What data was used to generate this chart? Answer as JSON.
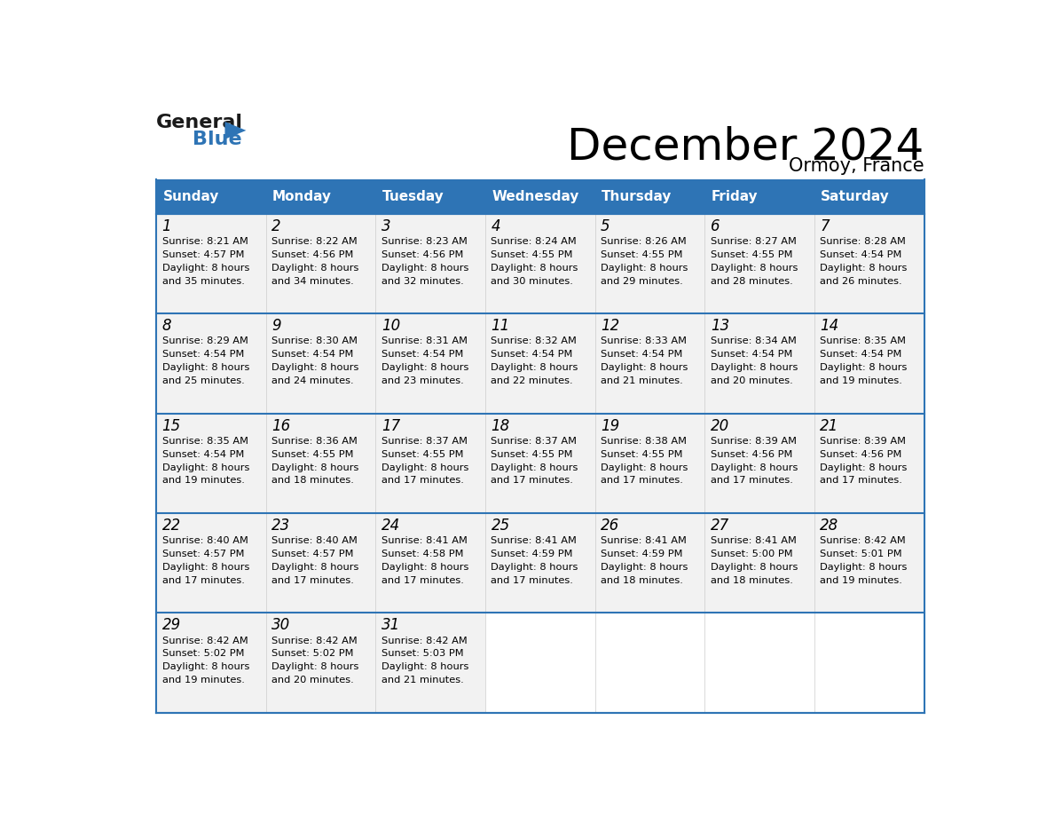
{
  "title": "December 2024",
  "subtitle": "Ormoy, France",
  "header_color": "#2E74B5",
  "header_text_color": "#FFFFFF",
  "day_names": [
    "Sunday",
    "Monday",
    "Tuesday",
    "Wednesday",
    "Thursday",
    "Friday",
    "Saturday"
  ],
  "bg_color": "#FFFFFF",
  "cell_bg_color": "#F2F2F2",
  "row_line_color": "#2E74B5",
  "sep_line_color": "#CCCCCC",
  "text_color": "#000000",
  "logo_dark_color": "#1A1A1A",
  "logo_blue_color": "#2E74B5",
  "days": [
    {
      "day": 1,
      "col": 0,
      "row": 0,
      "sunrise": "8:21 AM",
      "sunset": "4:57 PM",
      "daylight_hours": 8,
      "daylight_minutes": 35
    },
    {
      "day": 2,
      "col": 1,
      "row": 0,
      "sunrise": "8:22 AM",
      "sunset": "4:56 PM",
      "daylight_hours": 8,
      "daylight_minutes": 34
    },
    {
      "day": 3,
      "col": 2,
      "row": 0,
      "sunrise": "8:23 AM",
      "sunset": "4:56 PM",
      "daylight_hours": 8,
      "daylight_minutes": 32
    },
    {
      "day": 4,
      "col": 3,
      "row": 0,
      "sunrise": "8:24 AM",
      "sunset": "4:55 PM",
      "daylight_hours": 8,
      "daylight_minutes": 30
    },
    {
      "day": 5,
      "col": 4,
      "row": 0,
      "sunrise": "8:26 AM",
      "sunset": "4:55 PM",
      "daylight_hours": 8,
      "daylight_minutes": 29
    },
    {
      "day": 6,
      "col": 5,
      "row": 0,
      "sunrise": "8:27 AM",
      "sunset": "4:55 PM",
      "daylight_hours": 8,
      "daylight_minutes": 28
    },
    {
      "day": 7,
      "col": 6,
      "row": 0,
      "sunrise": "8:28 AM",
      "sunset": "4:54 PM",
      "daylight_hours": 8,
      "daylight_minutes": 26
    },
    {
      "day": 8,
      "col": 0,
      "row": 1,
      "sunrise": "8:29 AM",
      "sunset": "4:54 PM",
      "daylight_hours": 8,
      "daylight_minutes": 25
    },
    {
      "day": 9,
      "col": 1,
      "row": 1,
      "sunrise": "8:30 AM",
      "sunset": "4:54 PM",
      "daylight_hours": 8,
      "daylight_minutes": 24
    },
    {
      "day": 10,
      "col": 2,
      "row": 1,
      "sunrise": "8:31 AM",
      "sunset": "4:54 PM",
      "daylight_hours": 8,
      "daylight_minutes": 23
    },
    {
      "day": 11,
      "col": 3,
      "row": 1,
      "sunrise": "8:32 AM",
      "sunset": "4:54 PM",
      "daylight_hours": 8,
      "daylight_minutes": 22
    },
    {
      "day": 12,
      "col": 4,
      "row": 1,
      "sunrise": "8:33 AM",
      "sunset": "4:54 PM",
      "daylight_hours": 8,
      "daylight_minutes": 21
    },
    {
      "day": 13,
      "col": 5,
      "row": 1,
      "sunrise": "8:34 AM",
      "sunset": "4:54 PM",
      "daylight_hours": 8,
      "daylight_minutes": 20
    },
    {
      "day": 14,
      "col": 6,
      "row": 1,
      "sunrise": "8:35 AM",
      "sunset": "4:54 PM",
      "daylight_hours": 8,
      "daylight_minutes": 19
    },
    {
      "day": 15,
      "col": 0,
      "row": 2,
      "sunrise": "8:35 AM",
      "sunset": "4:54 PM",
      "daylight_hours": 8,
      "daylight_minutes": 19
    },
    {
      "day": 16,
      "col": 1,
      "row": 2,
      "sunrise": "8:36 AM",
      "sunset": "4:55 PM",
      "daylight_hours": 8,
      "daylight_minutes": 18
    },
    {
      "day": 17,
      "col": 2,
      "row": 2,
      "sunrise": "8:37 AM",
      "sunset": "4:55 PM",
      "daylight_hours": 8,
      "daylight_minutes": 17
    },
    {
      "day": 18,
      "col": 3,
      "row": 2,
      "sunrise": "8:37 AM",
      "sunset": "4:55 PM",
      "daylight_hours": 8,
      "daylight_minutes": 17
    },
    {
      "day": 19,
      "col": 4,
      "row": 2,
      "sunrise": "8:38 AM",
      "sunset": "4:55 PM",
      "daylight_hours": 8,
      "daylight_minutes": 17
    },
    {
      "day": 20,
      "col": 5,
      "row": 2,
      "sunrise": "8:39 AM",
      "sunset": "4:56 PM",
      "daylight_hours": 8,
      "daylight_minutes": 17
    },
    {
      "day": 21,
      "col": 6,
      "row": 2,
      "sunrise": "8:39 AM",
      "sunset": "4:56 PM",
      "daylight_hours": 8,
      "daylight_minutes": 17
    },
    {
      "day": 22,
      "col": 0,
      "row": 3,
      "sunrise": "8:40 AM",
      "sunset": "4:57 PM",
      "daylight_hours": 8,
      "daylight_minutes": 17
    },
    {
      "day": 23,
      "col": 1,
      "row": 3,
      "sunrise": "8:40 AM",
      "sunset": "4:57 PM",
      "daylight_hours": 8,
      "daylight_minutes": 17
    },
    {
      "day": 24,
      "col": 2,
      "row": 3,
      "sunrise": "8:41 AM",
      "sunset": "4:58 PM",
      "daylight_hours": 8,
      "daylight_minutes": 17
    },
    {
      "day": 25,
      "col": 3,
      "row": 3,
      "sunrise": "8:41 AM",
      "sunset": "4:59 PM",
      "daylight_hours": 8,
      "daylight_minutes": 17
    },
    {
      "day": 26,
      "col": 4,
      "row": 3,
      "sunrise": "8:41 AM",
      "sunset": "4:59 PM",
      "daylight_hours": 8,
      "daylight_minutes": 18
    },
    {
      "day": 27,
      "col": 5,
      "row": 3,
      "sunrise": "8:41 AM",
      "sunset": "5:00 PM",
      "daylight_hours": 8,
      "daylight_minutes": 18
    },
    {
      "day": 28,
      "col": 6,
      "row": 3,
      "sunrise": "8:42 AM",
      "sunset": "5:01 PM",
      "daylight_hours": 8,
      "daylight_minutes": 19
    },
    {
      "day": 29,
      "col": 0,
      "row": 4,
      "sunrise": "8:42 AM",
      "sunset": "5:02 PM",
      "daylight_hours": 8,
      "daylight_minutes": 19
    },
    {
      "day": 30,
      "col": 1,
      "row": 4,
      "sunrise": "8:42 AM",
      "sunset": "5:02 PM",
      "daylight_hours": 8,
      "daylight_minutes": 20
    },
    {
      "day": 31,
      "col": 2,
      "row": 4,
      "sunrise": "8:42 AM",
      "sunset": "5:03 PM",
      "daylight_hours": 8,
      "daylight_minutes": 21
    }
  ]
}
